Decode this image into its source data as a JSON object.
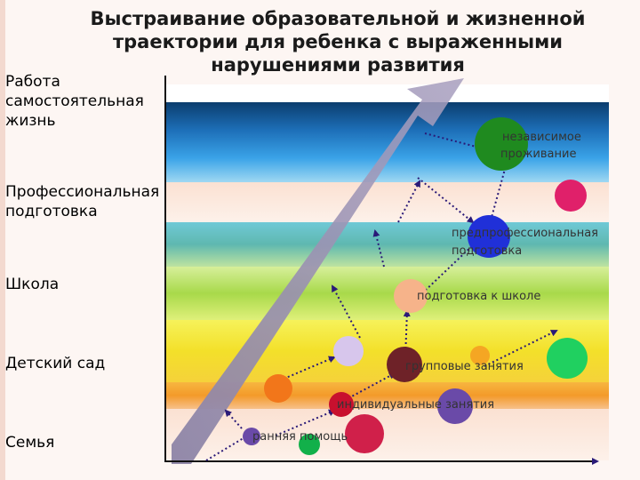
{
  "title": "Выстраивание образовательной и жизненной траектории для ребенка с выраженными нарушениями развития",
  "levels": [
    {
      "label": "Работа самостоятельная жизнь"
    },
    {
      "label": "Профессиональная подготовка"
    },
    {
      "label": "Школа"
    },
    {
      "label": "Детский сад"
    },
    {
      "label": "Семья"
    }
  ],
  "stages": {
    "independent": "независимое проживание",
    "preprof": "предпрофессиональная подготовка",
    "school_prep": "подготовка к школе",
    "group": "групповые занятия",
    "individual": "индивидуальные занятия",
    "early": "ранняя помощь"
  },
  "colors": {
    "arrow": "#8a7fa0",
    "path": "#2a1a78",
    "circle_dark_green": "#1f8a1f",
    "circle_blue": "#2030d8",
    "circle_magenta": "#e0206a",
    "circle_peach": "#f6b38a",
    "circle_maroon": "#6e2228",
    "circle_red": "#c8102e",
    "circle_purple": "#6a4aa8",
    "circle_green": "#12b04a",
    "circle_lavender": "#d7c6ec",
    "circle_orange": "#f2761a",
    "circle_light_green": "#20d060",
    "circle_yellow_orange": "#f5a623",
    "circle_crimson": "#d0204a"
  }
}
